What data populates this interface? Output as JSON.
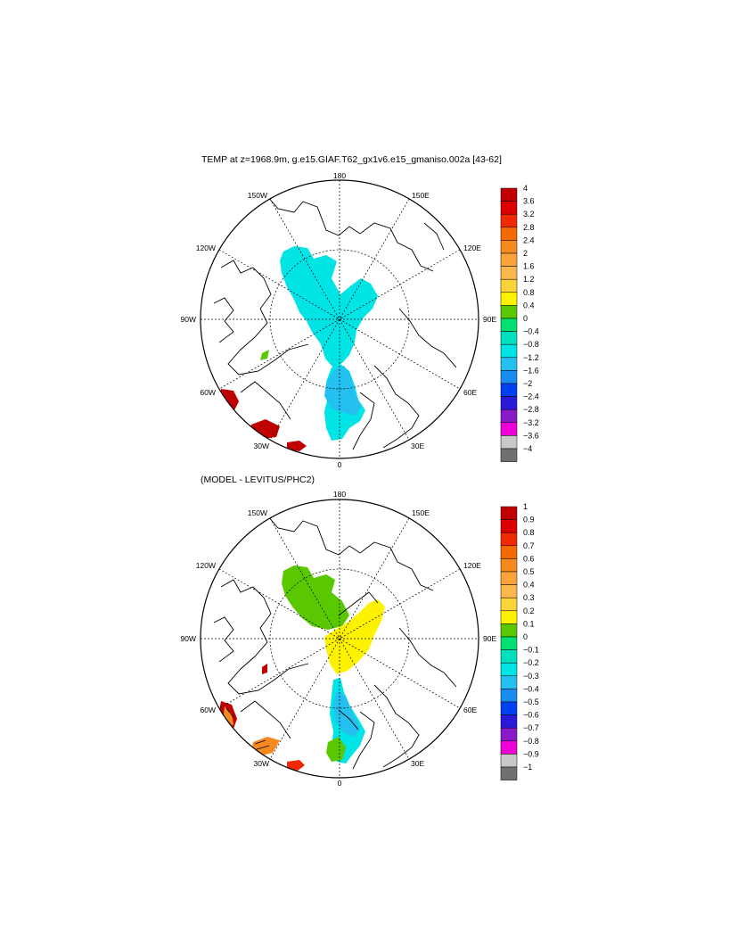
{
  "panels": [
    {
      "title": "TEMP at z=1968.9m, g.e15.GIAF.T62_gx1v6.e15_gmaniso.002a [43-62]",
      "lon_labels": {
        "top": "180",
        "bottom": "0",
        "left": "90W",
        "right": "90E",
        "ul1": "150W",
        "ur1": "150E",
        "ul2": "120W",
        "ur2": "120E",
        "ll1": "60W",
        "lr1": "60E",
        "ll2": "30W",
        "lr2": "30E"
      },
      "colorbar": {
        "labels": [
          "4",
          "3.6",
          "3.2",
          "2.8",
          "2.4",
          "2",
          "1.6",
          "1.2",
          "0.8",
          "0.4",
          "0",
          "−0.4",
          "−0.8",
          "−1.2",
          "−1.6",
          "−2",
          "−2.4",
          "−2.8",
          "−3.2",
          "−3.6",
          "−4"
        ],
        "colors": [
          "#c00000",
          "#dc0000",
          "#f02a00",
          "#f26a00",
          "#f68a1e",
          "#fba23a",
          "#fcb84c",
          "#fbd43c",
          "#fff200",
          "#5ac800",
          "#00e070",
          "#00e0c0",
          "#00e4e6",
          "#24c0f0",
          "#1a8cf0",
          "#0040f0",
          "#2a1ad8",
          "#8a1ac8",
          "#f000d8",
          "#c8c8c8",
          "#707070"
        ]
      }
    },
    {
      "title": "(MODEL - LEVITUS/PHC2)",
      "lon_labels": {
        "top": "180",
        "bottom": "0",
        "left": "90W",
        "right": "90E",
        "ul1": "150W",
        "ur1": "150E",
        "ul2": "120W",
        "ur2": "120E",
        "ll1": "60W",
        "lr1": "60E",
        "ll2": "30W",
        "lr2": "30E"
      },
      "colorbar": {
        "labels": [
          "1",
          "0.9",
          "0.8",
          "0.7",
          "0.6",
          "0.5",
          "0.4",
          "0.3",
          "0.2",
          "0.1",
          "0",
          "−0.1",
          "−0.2",
          "−0.3",
          "−0.4",
          "−0.5",
          "−0.6",
          "−0.7",
          "−0.8",
          "−0.9",
          "−1"
        ],
        "colors": [
          "#c00000",
          "#dc0000",
          "#f02a00",
          "#f26a00",
          "#f68a1e",
          "#fba23a",
          "#fcb84c",
          "#fbd43c",
          "#fff200",
          "#5ac800",
          "#00e070",
          "#00e0c0",
          "#00e4e6",
          "#24c0f0",
          "#1a8cf0",
          "#0040f0",
          "#2a1ad8",
          "#8a1ac8",
          "#f000d8",
          "#c8c8c8",
          "#707070"
        ]
      }
    }
  ],
  "field_colors": {
    "panel1": {
      "cyan": "#00e4e6",
      "blue": "#24c0f0",
      "red": "#c00000",
      "green": "#5ac800"
    },
    "panel2": {
      "green": "#5ac800",
      "yellow": "#fff200",
      "cyan": "#00e4e6",
      "blue": "#24c0f0",
      "red": "#c00000",
      "orange": "#f68a1e"
    }
  }
}
